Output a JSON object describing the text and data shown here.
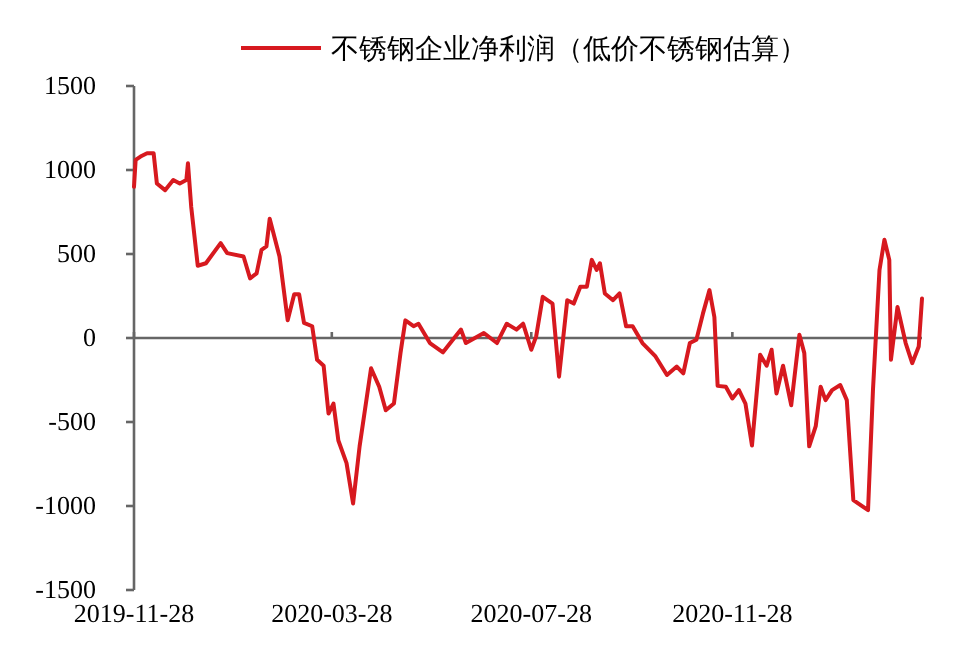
{
  "chart_data": {
    "type": "line",
    "legend": "top",
    "x": [
      "2019-11-28",
      "2019-11-29",
      "2019-12-02",
      "2019-12-06",
      "2019-12-10",
      "2019-12-12",
      "2019-12-17",
      "2019-12-22",
      "2019-12-26",
      "2019-12-30",
      "2019-12-31",
      "2020-01-02",
      "2020-01-06",
      "2020-01-11",
      "2020-01-20",
      "2020-01-24",
      "2020-02-03",
      "2020-02-07",
      "2020-02-11",
      "2020-02-14",
      "2020-02-17",
      "2020-02-19",
      "2020-02-25",
      "2020-03-01",
      "2020-03-05",
      "2020-03-08",
      "2020-03-11",
      "2020-03-16",
      "2020-03-19",
      "2020-03-23",
      "2020-03-26",
      "2020-03-29",
      "2020-04-01",
      "2020-04-06",
      "2020-04-10",
      "2020-04-14",
      "2020-04-21",
      "2020-04-26",
      "2020-04-30",
      "2020-05-05",
      "2020-05-09",
      "2020-05-12",
      "2020-05-17",
      "2020-05-20",
      "2020-05-27",
      "2020-06-04",
      "2020-06-10",
      "2020-06-15",
      "2020-06-18",
      "2020-06-29",
      "2020-07-07",
      "2020-07-13",
      "2020-07-19",
      "2020-07-23",
      "2020-07-28",
      "2020-07-31",
      "2020-08-04",
      "2020-08-10",
      "2020-08-14",
      "2020-08-19",
      "2020-08-23",
      "2020-08-27",
      "2020-08-31",
      "2020-09-03",
      "2020-09-06",
      "2020-09-08",
      "2020-09-11",
      "2020-09-16",
      "2020-09-20",
      "2020-09-24",
      "2020-09-28",
      "2020-10-04",
      "2020-10-12",
      "2020-10-19",
      "2020-10-25",
      "2020-10-29",
      "2020-11-02",
      "2020-11-06",
      "2020-11-10",
      "2020-11-14",
      "2020-11-17",
      "2020-11-19",
      "2020-11-24",
      "2020-11-28",
      "2020-12-02",
      "2020-12-06",
      "2020-12-10",
      "2020-12-15",
      "2020-12-19",
      "2020-12-22",
      "2020-12-25",
      "2020-12-29",
      "2021-01-03",
      "2021-01-08",
      "2021-01-11",
      "2021-01-14",
      "2021-01-18",
      "2021-01-21",
      "2021-01-24",
      "2021-01-28",
      "2021-02-02",
      "2021-02-06",
      "2021-02-10",
      "2021-02-19",
      "2021-02-22",
      "2021-02-26",
      "2021-03-01",
      "2021-03-04",
      "2021-03-05",
      "2021-03-09",
      "2021-03-14",
      "2021-03-18",
      "2021-03-22",
      "2021-03-24"
    ],
    "series": [
      {
        "name": "不锈钢企业净利润（低价不锈钢估算）",
        "color": "#d7191f",
        "values": [
          900,
          1060,
          1080,
          1100,
          1100,
          920,
          880,
          940,
          920,
          940,
          1040,
          780,
          430,
          445,
          565,
          505,
          485,
          355,
          385,
          525,
          545,
          710,
          485,
          105,
          260,
          260,
          90,
          70,
          -130,
          -165,
          -450,
          -390,
          -610,
          -745,
          -985,
          -645,
          -180,
          -290,
          -430,
          -390,
          -90,
          105,
          70,
          85,
          -30,
          -85,
          -10,
          50,
          -30,
          30,
          -30,
          85,
          50,
          85,
          -70,
          10,
          245,
          205,
          -230,
          225,
          205,
          305,
          305,
          465,
          405,
          445,
          265,
          225,
          265,
          70,
          70,
          -30,
          -110,
          -220,
          -170,
          -210,
          -30,
          -10,
          145,
          285,
          125,
          -285,
          -290,
          -360,
          -310,
          -390,
          -640,
          -100,
          -165,
          -70,
          -330,
          -165,
          -400,
          20,
          -90,
          -645,
          -525,
          -290,
          -370,
          -310,
          -280,
          -370,
          -965,
          -1025,
          -310,
          405,
          585,
          465,
          -130,
          185,
          -30,
          -150,
          -50,
          235
        ]
      }
    ],
    "xlim": [
      "2019-11-28",
      "2021-03-24"
    ],
    "xticks": [
      "2019-11-28",
      "2020-03-28",
      "2020-07-28",
      "2020-11-28"
    ],
    "ylim": [
      -1500,
      1500
    ],
    "yticks": [
      -1500,
      -1000,
      -500,
      0,
      500,
      1000,
      1500
    ]
  }
}
